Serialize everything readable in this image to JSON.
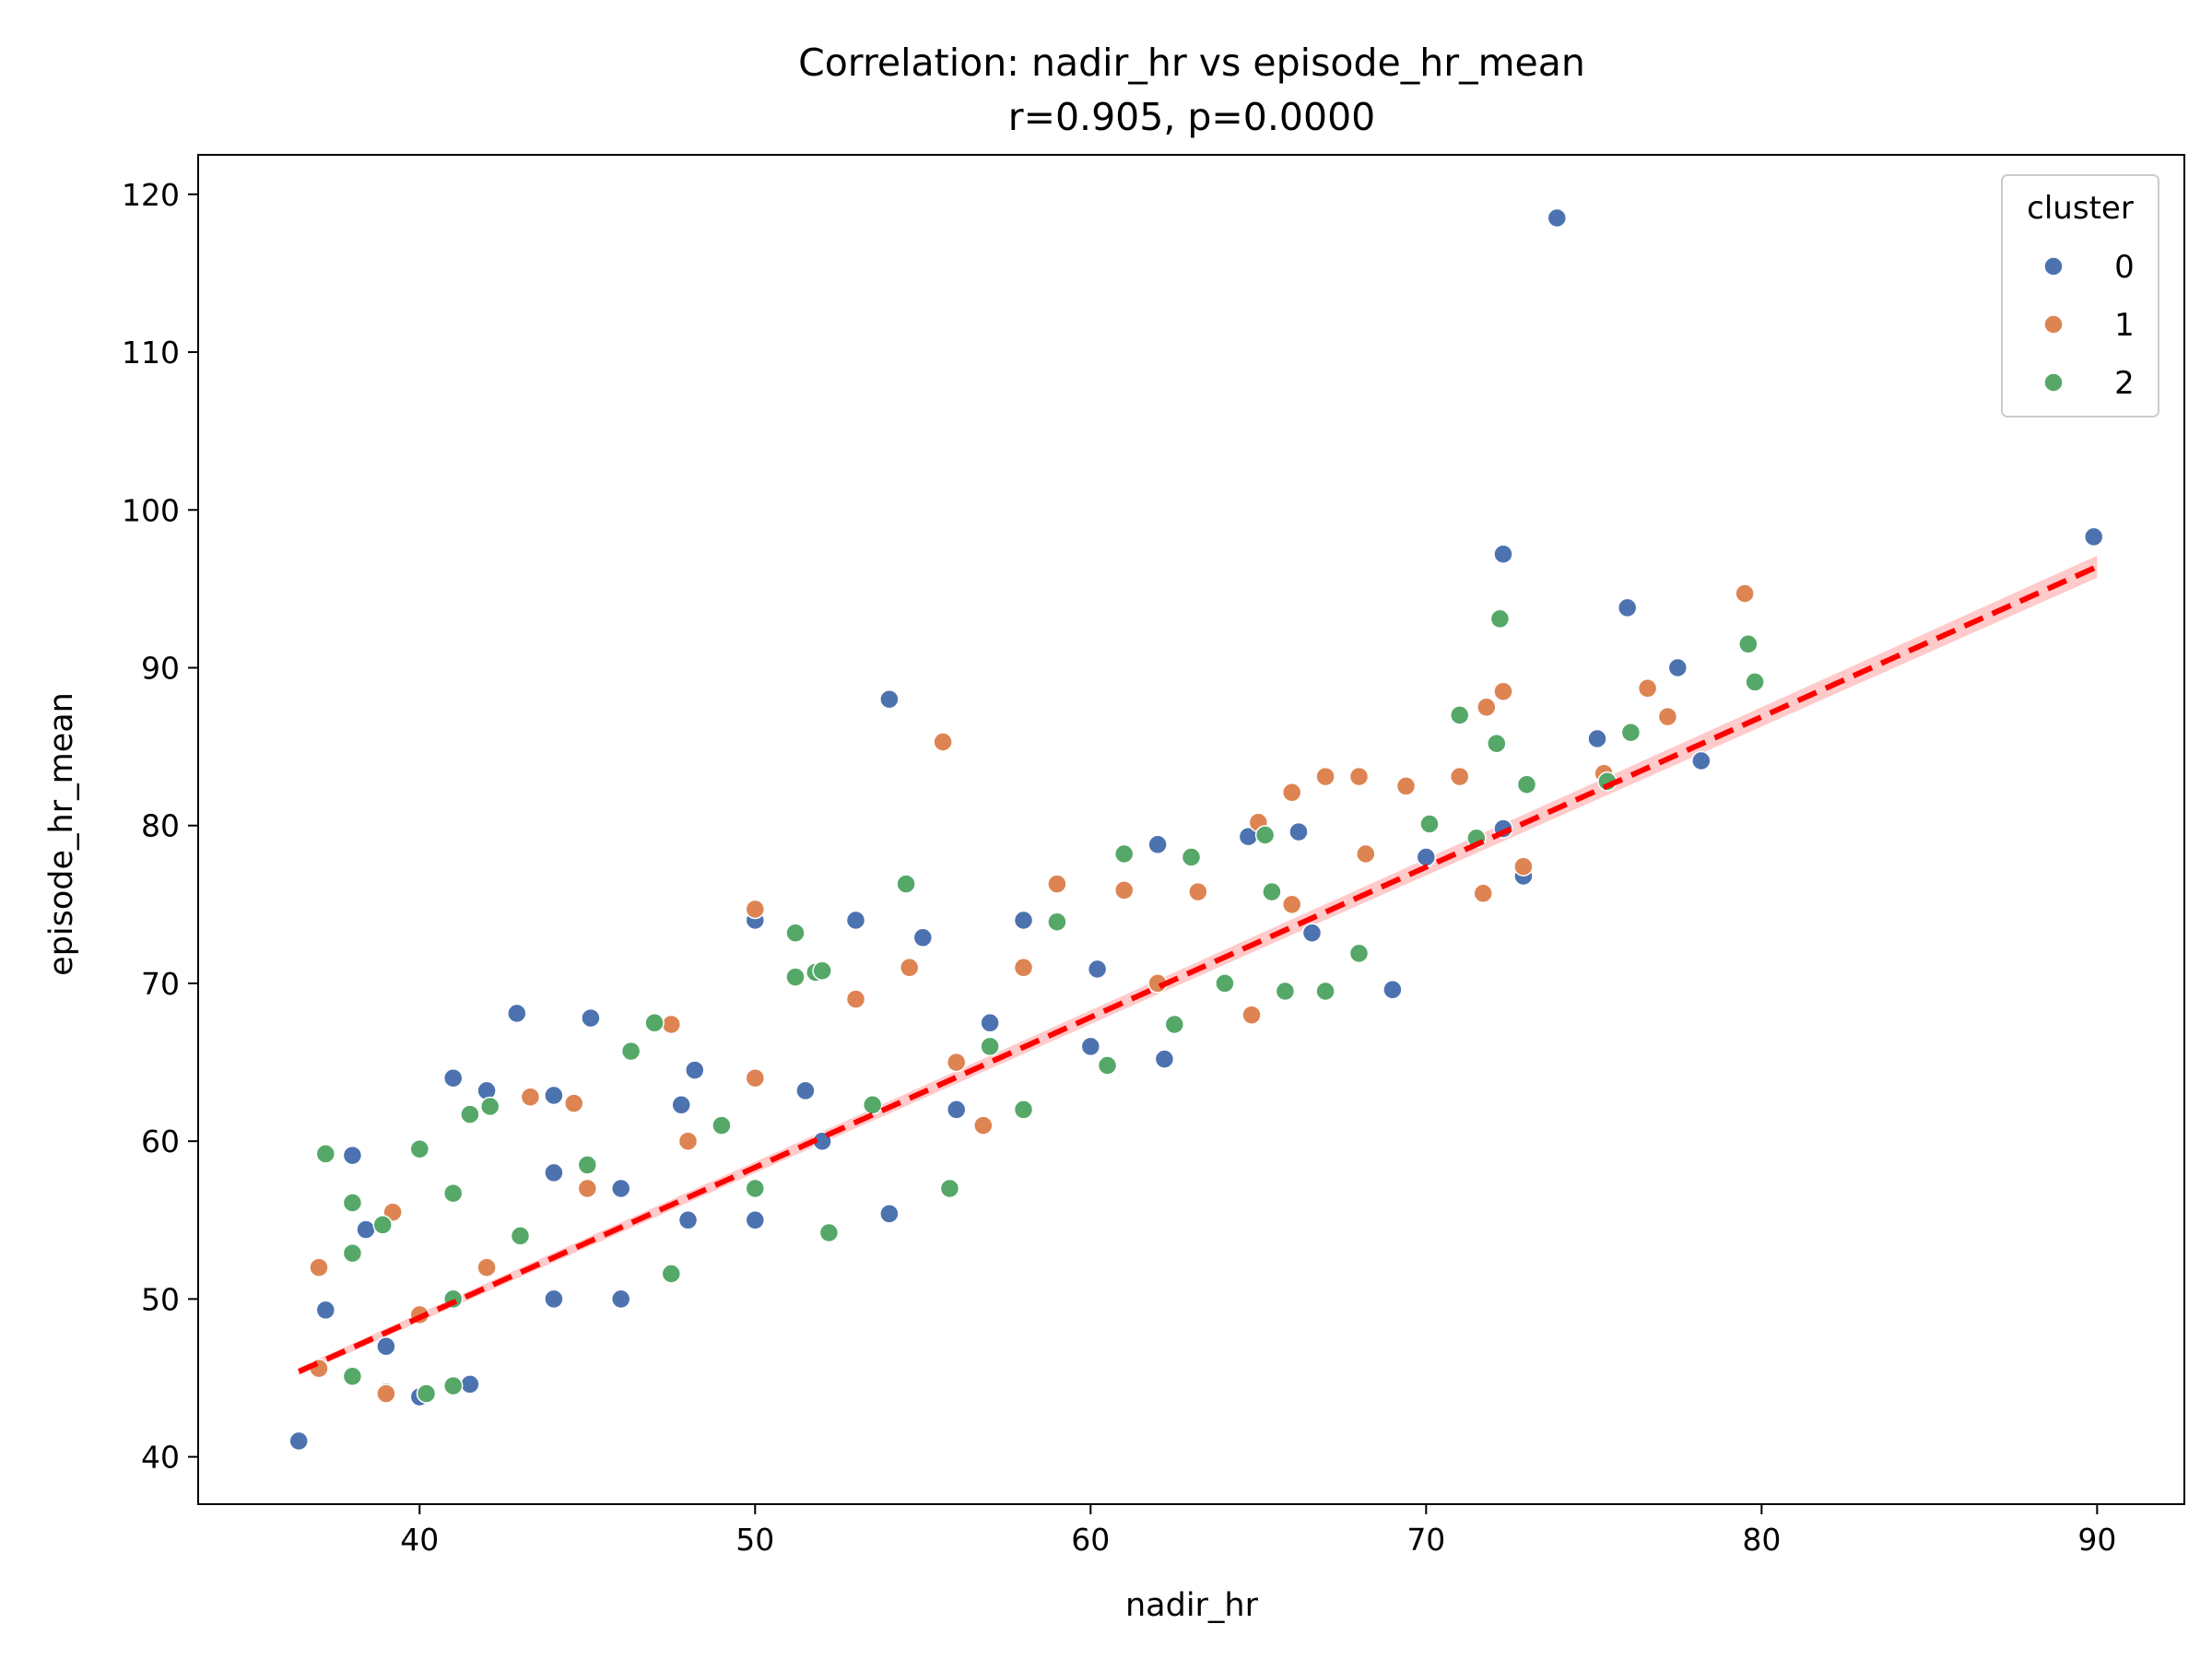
{
  "chart_data": {
    "type": "scatter",
    "title": "Correlation: nadir_hr vs episode_hr_mean",
    "subtitle": "r=0.905, p=0.0000",
    "xlabel": "nadir_hr",
    "ylabel": "episode_hr_mean",
    "xlim": [
      33.4,
      92.6
    ],
    "ylim": [
      37.0,
      122.5
    ],
    "x_ticks": [
      40,
      50,
      60,
      70,
      80,
      90
    ],
    "x_tick_labels": [
      "40",
      "50",
      "60",
      "70",
      "80",
      "90"
    ],
    "y_ticks": [
      40,
      50,
      60,
      70,
      80,
      90,
      100,
      110,
      120
    ],
    "y_tick_labels": [
      "40",
      "50",
      "60",
      "70",
      "80",
      "90",
      "100",
      "110",
      "120"
    ],
    "grid": false,
    "legend": {
      "title": "cluster",
      "placement": "top-right"
    },
    "regression_line": {
      "style": "dashed",
      "color": "#ff0000",
      "band_color": "#ffb3b3",
      "x": [
        36.4,
        90.0
      ],
      "y": [
        45.4,
        96.4
      ]
    },
    "series": [
      {
        "name": "0",
        "color": "#4c72b0",
        "points": [
          [
            36.4,
            41.0
          ],
          [
            73.9,
            118.5
          ],
          [
            89.9,
            98.3
          ],
          [
            72.3,
            97.2
          ],
          [
            76.0,
            93.8
          ],
          [
            77.5,
            90.0
          ],
          [
            75.1,
            85.5
          ],
          [
            78.2,
            84.1
          ],
          [
            54.0,
            88.0
          ],
          [
            42.9,
            68.1
          ],
          [
            45.1,
            67.8
          ],
          [
            41.0,
            64.0
          ],
          [
            50.0,
            74.0
          ],
          [
            53.0,
            74.0
          ],
          [
            37.2,
            49.3
          ],
          [
            38.0,
            59.1
          ],
          [
            38.4,
            54.4
          ],
          [
            39.0,
            44.1
          ],
          [
            40.0,
            43.8
          ],
          [
            69.0,
            69.6
          ],
          [
            64.7,
            79.3
          ],
          [
            66.2,
            79.6
          ],
          [
            62.0,
            78.8
          ],
          [
            72.3,
            79.8
          ],
          [
            72.9,
            76.8
          ],
          [
            60.2,
            70.9
          ],
          [
            55.0,
            72.9
          ],
          [
            47.8,
            62.3
          ],
          [
            44.0,
            62.9
          ],
          [
            44.0,
            58.0
          ],
          [
            46.0,
            57.0
          ],
          [
            44.0,
            50.0
          ],
          [
            41.5,
            44.6
          ],
          [
            39.0,
            47.0
          ],
          [
            42.0,
            63.2
          ],
          [
            48.2,
            64.5
          ],
          [
            58.0,
            74.0
          ],
          [
            64.0,
            70.0
          ],
          [
            62.2,
            65.2
          ],
          [
            56.0,
            62.0
          ],
          [
            52.0,
            60.0
          ],
          [
            50.0,
            55.0
          ],
          [
            48.0,
            55.0
          ],
          [
            46.0,
            50.0
          ],
          [
            54.0,
            55.4
          ],
          [
            60.0,
            66.0
          ],
          [
            66.6,
            73.2
          ],
          [
            70.0,
            78.0
          ],
          [
            57.0,
            67.5
          ],
          [
            51.5,
            63.2
          ]
        ]
      },
      {
        "name": "1",
        "color": "#dd8452",
        "points": [
          [
            37.0,
            52.0
          ],
          [
            37.0,
            45.6
          ],
          [
            39.0,
            44.0
          ],
          [
            39.2,
            55.5
          ],
          [
            55.6,
            85.3
          ],
          [
            79.5,
            94.7
          ],
          [
            72.3,
            88.5
          ],
          [
            71.8,
            87.5
          ],
          [
            76.6,
            88.7
          ],
          [
            77.2,
            86.9
          ],
          [
            75.3,
            83.3
          ],
          [
            67.0,
            83.1
          ],
          [
            68.0,
            83.1
          ],
          [
            69.4,
            82.5
          ],
          [
            71.0,
            83.1
          ],
          [
            66.0,
            82.1
          ],
          [
            50.0,
            74.7
          ],
          [
            47.5,
            67.4
          ],
          [
            43.3,
            62.8
          ],
          [
            44.6,
            62.4
          ],
          [
            54.6,
            71.0
          ],
          [
            59.0,
            76.3
          ],
          [
            63.2,
            75.8
          ],
          [
            71.7,
            75.7
          ],
          [
            72.9,
            77.4
          ],
          [
            65.0,
            80.2
          ],
          [
            61.0,
            75.9
          ],
          [
            58.0,
            71.0
          ],
          [
            53.0,
            69.0
          ],
          [
            50.0,
            64.0
          ],
          [
            48.0,
            60.0
          ],
          [
            45.0,
            57.0
          ],
          [
            42.0,
            52.0
          ],
          [
            40.0,
            49.0
          ],
          [
            56.0,
            65.0
          ],
          [
            62.0,
            70.0
          ],
          [
            66.0,
            75.0
          ],
          [
            68.2,
            78.2
          ],
          [
            64.8,
            68.0
          ],
          [
            56.8,
            61.0
          ]
        ]
      },
      {
        "name": "2",
        "color": "#55a868",
        "points": [
          [
            37.2,
            59.2
          ],
          [
            38.0,
            52.9
          ],
          [
            38.0,
            56.1
          ],
          [
            38.9,
            54.7
          ],
          [
            38.0,
            45.1
          ],
          [
            40.0,
            59.5
          ],
          [
            41.0,
            56.7
          ],
          [
            41.5,
            61.7
          ],
          [
            42.1,
            62.2
          ],
          [
            40.2,
            44.0
          ],
          [
            41.0,
            44.5
          ],
          [
            54.5,
            76.3
          ],
          [
            51.8,
            70.7
          ],
          [
            51.2,
            73.2
          ],
          [
            51.2,
            70.4
          ],
          [
            52.0,
            70.8
          ],
          [
            47.0,
            67.5
          ],
          [
            46.3,
            65.7
          ],
          [
            61.0,
            78.2
          ],
          [
            63.0,
            78.0
          ],
          [
            65.2,
            79.4
          ],
          [
            71.0,
            87.0
          ],
          [
            72.1,
            85.2
          ],
          [
            72.2,
            93.1
          ],
          [
            73.0,
            82.6
          ],
          [
            75.4,
            82.8
          ],
          [
            76.1,
            85.9
          ],
          [
            79.6,
            91.5
          ],
          [
            79.8,
            89.1
          ],
          [
            68.0,
            71.9
          ],
          [
            67.0,
            69.5
          ],
          [
            65.8,
            69.5
          ],
          [
            70.1,
            80.1
          ],
          [
            71.5,
            79.2
          ],
          [
            65.4,
            75.8
          ],
          [
            59.0,
            73.9
          ],
          [
            53.5,
            62.3
          ],
          [
            49.0,
            61.0
          ],
          [
            45.0,
            58.5
          ],
          [
            43.0,
            54.0
          ],
          [
            41.0,
            50.0
          ],
          [
            47.5,
            51.6
          ],
          [
            52.2,
            54.2
          ],
          [
            55.8,
            57.0
          ],
          [
            58.0,
            62.0
          ],
          [
            60.5,
            64.8
          ],
          [
            62.5,
            67.4
          ],
          [
            64.0,
            70.0
          ],
          [
            57.0,
            66.0
          ],
          [
            50.0,
            57.0
          ]
        ]
      }
    ]
  }
}
